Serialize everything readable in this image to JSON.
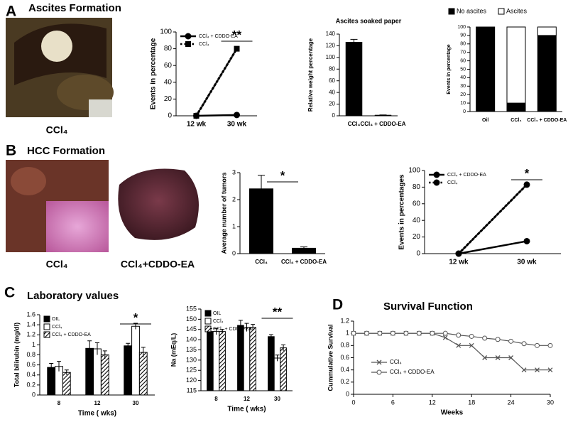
{
  "figure": {
    "labels": [
      "A",
      "B",
      "C",
      "D"
    ],
    "titles": [
      "Ascites Formation",
      "HCC Formation",
      "Laboratory values",
      "Survival Function"
    ],
    "captions": [
      "CCl₄",
      "CCl₄",
      "CCl₄+CDDO-EA"
    ]
  },
  "chart_data": [
    {
      "type": "line",
      "ylabel": "Events in percentage",
      "categories": [
        "12 wk",
        "30 wk"
      ],
      "series": [
        {
          "name": "CCl₄ + CDDO-EA",
          "color": "#000",
          "line_style": "solid",
          "marker": "circle",
          "values": [
            0,
            1
          ]
        },
        {
          "name": "CCl₄",
          "color": "#000",
          "line_style": "dotted",
          "marker": "square",
          "values": [
            0,
            80
          ]
        }
      ],
      "ylim": [
        0,
        100
      ],
      "yticks": [
        0,
        20,
        40,
        60,
        80,
        100
      ],
      "legend": "upper left",
      "annotation": "**"
    },
    {
      "type": "bar",
      "title": "Ascites soaked paper",
      "ylabel": "Relative weight percentage",
      "categories": [
        "CCl₄",
        "CCl₄ + CDDO-EA"
      ],
      "values": [
        126,
        1
      ],
      "errors": [
        5,
        0.5
      ],
      "color": "#000",
      "ylim": [
        0,
        140
      ],
      "yticks": [
        0,
        20,
        40,
        60,
        80,
        100,
        120,
        140
      ]
    },
    {
      "type": "stacked_bar",
      "ylabel": "Events in percentage",
      "categories": [
        "Oil",
        "CCl₄",
        "CCl₄ + CDDO-EA"
      ],
      "series": [
        {
          "name": "No ascites",
          "color": "#000",
          "values": [
            100,
            10,
            90
          ]
        },
        {
          "name": "Ascites",
          "color": "#fff",
          "values": [
            0,
            90,
            10
          ]
        }
      ],
      "ylim": [
        0,
        100
      ],
      "yticks": [
        0,
        10,
        20,
        30,
        40,
        50,
        60,
        70,
        80,
        90,
        100
      ],
      "legend": "top"
    },
    {
      "type": "bar",
      "ylabel": "Average number of tumors",
      "categories": [
        "CCl₄",
        "CCl₄ + CDDO-EA"
      ],
      "values": [
        2.4,
        0.2
      ],
      "errors": [
        0.5,
        0.05
      ],
      "color": "#000",
      "ylim": [
        0,
        3
      ],
      "yticks": [
        0,
        1,
        2,
        3
      ],
      "annotation": "*"
    },
    {
      "type": "line",
      "ylabel": "Events in percentages",
      "categories": [
        "12 wk",
        "30 wk"
      ],
      "series": [
        {
          "name": "CCl₄ + CDDO-EA",
          "color": "#000",
          "line_style": "solid",
          "marker": "circle",
          "values": [
            0,
            15
          ]
        },
        {
          "name": "CCl₄",
          "color": "#000",
          "line_style": "dotted",
          "marker": "circle",
          "values": [
            0,
            83
          ]
        }
      ],
      "ylim": [
        0,
        100
      ],
      "yticks": [
        0,
        20,
        40,
        60,
        80,
        100
      ],
      "legend": "upper left",
      "annotation": "*"
    },
    {
      "type": "grouped_bar",
      "ylabel": "Total bilirubin (mg/dl)",
      "xlabel": "Time ( wks)",
      "categories": [
        "8",
        "12",
        "30"
      ],
      "series": [
        {
          "name": "OIL",
          "color": "#000",
          "values": [
            0.55,
            0.93,
            0.98
          ],
          "errors": [
            0.08,
            0.15,
            0.05
          ]
        },
        {
          "name": "CCl₄",
          "color": "#fff",
          "values": [
            0.57,
            0.92,
            1.37
          ],
          "errors": [
            0.1,
            0.12,
            0.06
          ]
        },
        {
          "name": "CCl₄ + CDDO-EA",
          "color": "#fff",
          "pattern": "hatch",
          "values": [
            0.45,
            0.8,
            0.85
          ],
          "errors": [
            0.05,
            0.08,
            0.1
          ]
        }
      ],
      "ylim": [
        0,
        1.6
      ],
      "yticks": [
        0,
        0.2,
        0.4,
        0.6,
        0.8,
        1,
        1.2,
        1.4,
        1.6
      ],
      "legend": "upper left",
      "annotation": "*"
    },
    {
      "type": "grouped_bar",
      "ylabel": "Na (mEq/L)",
      "xlabel": "Time ( wks)",
      "categories": [
        "8",
        "12",
        "30"
      ],
      "series": [
        {
          "name": "OIL",
          "color": "#000",
          "values": [
            144,
            147,
            141.5
          ],
          "errors": [
            1.5,
            2.5,
            1
          ]
        },
        {
          "name": "CCl₄",
          "color": "#fff",
          "values": [
            144,
            146,
            131
          ],
          "errors": [
            1.5,
            2,
            1.5
          ]
        },
        {
          "name": "CCl₄ + CDDO-EA",
          "color": "#fff",
          "pattern": "hatch",
          "values": [
            144,
            146,
            136
          ],
          "errors": [
            1,
            1.5,
            1.5
          ]
        }
      ],
      "ylim": [
        115,
        155
      ],
      "yticks": [
        115,
        120,
        125,
        130,
        135,
        140,
        145,
        150,
        155
      ],
      "legend": "upper left",
      "annotation": "**"
    },
    {
      "type": "line",
      "ylabel": "Cummulative Survival",
      "xlabel": "Weeks",
      "x": [
        0,
        2,
        4,
        6,
        8,
        10,
        12,
        14,
        16,
        18,
        20,
        22,
        24,
        26,
        28,
        30
      ],
      "series": [
        {
          "name": "CCl₄",
          "color": "#555",
          "line_style": "solid",
          "marker": "x",
          "values": [
            1,
            1,
            1,
            1,
            1,
            1,
            1,
            0.93,
            0.8,
            0.8,
            0.6,
            0.6,
            0.6,
            0.4,
            0.4,
            0.4
          ]
        },
        {
          "name": "CCl₄ + CDDO-EA",
          "color": "#555",
          "line_style": "solid",
          "marker": "circle",
          "values": [
            1,
            1,
            1,
            1,
            1,
            1,
            1,
            1,
            0.97,
            0.95,
            0.92,
            0.9,
            0.87,
            0.83,
            0.8,
            0.8
          ]
        }
      ],
      "xlim": [
        0,
        30
      ],
      "xticks": [
        0,
        6,
        12,
        18,
        24,
        30
      ],
      "ylim": [
        0,
        1.2
      ],
      "yticks": [
        0,
        0.2,
        0.4,
        0.6,
        0.8,
        1,
        1.2
      ],
      "legend": "lower left"
    }
  ]
}
